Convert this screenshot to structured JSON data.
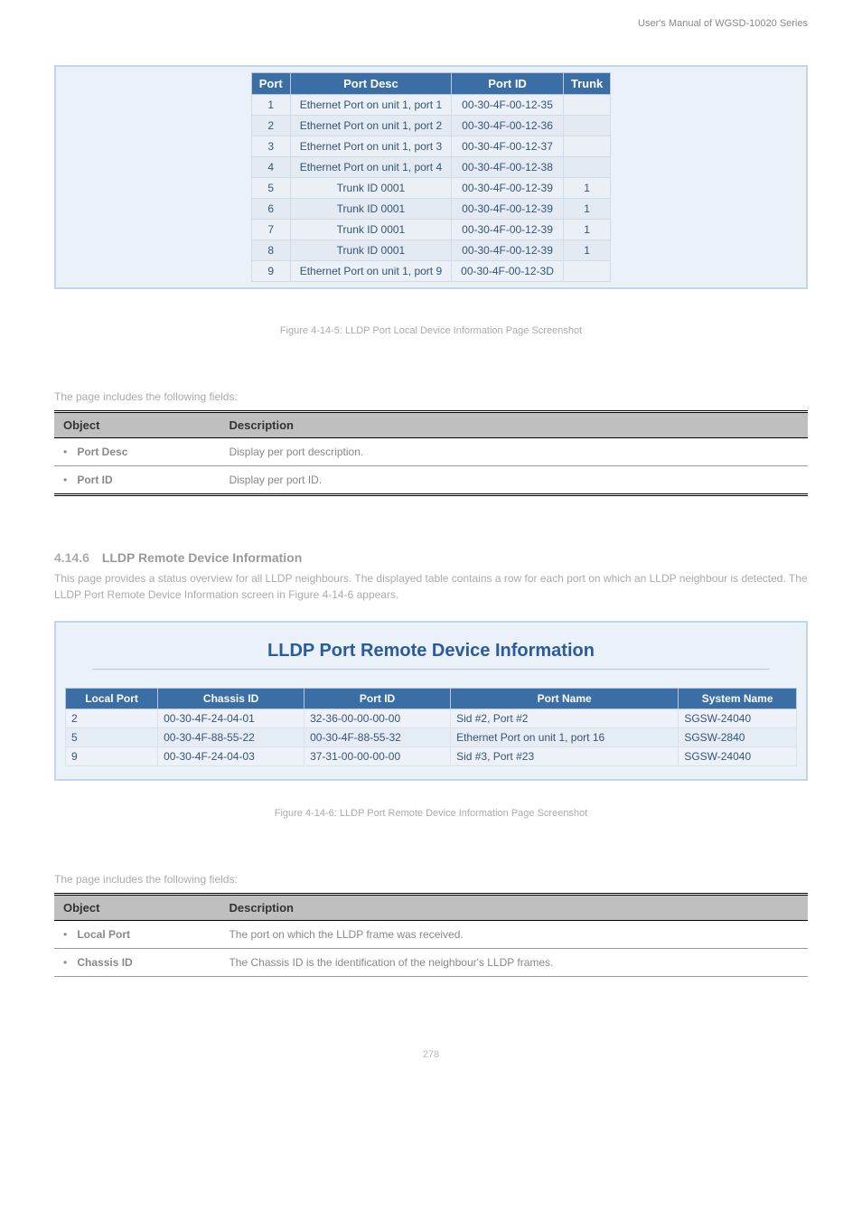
{
  "doc_header": "User's Manual of WGSD-10020 Series",
  "port_table": {
    "headers": [
      "Port",
      "Port Desc",
      "Port ID",
      "Trunk"
    ],
    "rows": [
      {
        "port": "1",
        "desc": "Ethernet Port on unit 1, port 1",
        "id": "00-30-4F-00-12-35",
        "trunk": ""
      },
      {
        "port": "2",
        "desc": "Ethernet Port on unit 1, port 2",
        "id": "00-30-4F-00-12-36",
        "trunk": ""
      },
      {
        "port": "3",
        "desc": "Ethernet Port on unit 1, port 3",
        "id": "00-30-4F-00-12-37",
        "trunk": ""
      },
      {
        "port": "4",
        "desc": "Ethernet Port on unit 1, port 4",
        "id": "00-30-4F-00-12-38",
        "trunk": ""
      },
      {
        "port": "5",
        "desc": "Trunk ID 0001",
        "id": "00-30-4F-00-12-39",
        "trunk": "1"
      },
      {
        "port": "6",
        "desc": "Trunk ID 0001",
        "id": "00-30-4F-00-12-39",
        "trunk": "1"
      },
      {
        "port": "7",
        "desc": "Trunk ID 0001",
        "id": "00-30-4F-00-12-39",
        "trunk": "1"
      },
      {
        "port": "8",
        "desc": "Trunk ID 0001",
        "id": "00-30-4F-00-12-39",
        "trunk": "1"
      },
      {
        "port": "9",
        "desc": "Ethernet Port on unit 1, port 9",
        "id": "00-30-4F-00-12-3D",
        "trunk": ""
      }
    ]
  },
  "fig1_caption": "Figure 4-14-5: LLDP Port Local Device Information Page Screenshot",
  "desc1_intro": "The page includes the following fields:",
  "desc1": {
    "headers": [
      "Object",
      "Description"
    ],
    "rows": [
      {
        "obj": "Port Desc",
        "desc": "Display per port description."
      },
      {
        "obj": "Port ID",
        "desc": "Display per port ID."
      }
    ]
  },
  "section": {
    "num": "4.14.6",
    "title": "LLDP Remote Device Information",
    "body": "This page provides a status overview for all LLDP neighbours. The displayed table contains a row for each port on which an LLDP neighbour is detected. The LLDP Port Remote Device Information screen in Figure 4-14-6 appears."
  },
  "panel2_title": "LLDP Port Remote Device Information",
  "remote_table": {
    "headers": [
      "Local Port",
      "Chassis ID",
      "Port ID",
      "Port Name",
      "System Name"
    ],
    "rows": [
      {
        "lp": "2",
        "cid": "00-30-4F-24-04-01",
        "pid": "32-36-00-00-00-00",
        "pname": "Sid #2, Port #2",
        "sname": "SGSW-24040"
      },
      {
        "lp": "5",
        "cid": "00-30-4F-88-55-22",
        "pid": "00-30-4F-88-55-32",
        "pname": "Ethernet Port on unit 1, port 16",
        "sname": "SGSW-2840"
      },
      {
        "lp": "9",
        "cid": "00-30-4F-24-04-03",
        "pid": "37-31-00-00-00-00",
        "pname": "Sid #3, Port #23",
        "sname": "SGSW-24040"
      }
    ]
  },
  "fig2_caption": "Figure 4-14-6: LLDP Port Remote Device Information Page Screenshot",
  "desc2_intro": "The page includes the following fields:",
  "desc2": {
    "headers": [
      "Object",
      "Description"
    ],
    "rows": [
      {
        "obj": "Local Port",
        "desc": "The port on which the LLDP frame was received."
      },
      {
        "obj": "Chassis ID",
        "desc": "The Chassis ID is the identification of the neighbour's LLDP frames."
      }
    ]
  },
  "page_num": "278"
}
